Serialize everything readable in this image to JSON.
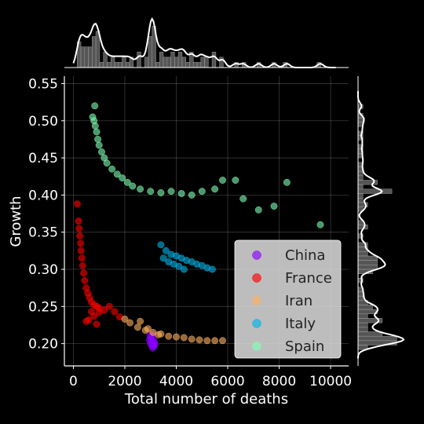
{
  "chart_data": {
    "type": "scatter",
    "title": "",
    "xlabel": "Total number of deaths",
    "ylabel": "Growth",
    "xlim": [
      -350,
      10700
    ],
    "ylim": [
      0.17,
      0.56
    ],
    "x_ticks": [
      0,
      2000,
      4000,
      6000,
      8000,
      10000
    ],
    "y_ticks": [
      0.2,
      0.25,
      0.3,
      0.35,
      0.4,
      0.45,
      0.5,
      0.55
    ],
    "x_tick_labels": [
      "0",
      "2000",
      "4000",
      "6000",
      "8000",
      "10000"
    ],
    "y_tick_labels": [
      "0.20",
      "0.25",
      "0.30",
      "0.35",
      "0.40",
      "0.45",
      "0.50",
      "0.55"
    ],
    "grid": true,
    "legend_position": "lower-right",
    "marginal_plots": [
      "top: x density with histogram",
      "right: y density with histogram"
    ],
    "series": [
      {
        "name": "China",
        "color": "#8b00ff",
        "points": [
          [
            2950,
            0.205
          ],
          [
            3000,
            0.2
          ],
          [
            3050,
            0.198
          ],
          [
            3100,
            0.203
          ],
          [
            3120,
            0.196
          ],
          [
            2980,
            0.211
          ],
          [
            3150,
            0.201
          ],
          [
            3080,
            0.194
          ],
          [
            3020,
            0.207
          ],
          [
            3170,
            0.199
          ],
          [
            3060,
            0.212
          ],
          [
            3110,
            0.205
          ]
        ]
      },
      {
        "name": "France",
        "color": "#ff0000",
        "points": [
          [
            150,
            0.388
          ],
          [
            200,
            0.365
          ],
          [
            220,
            0.355
          ],
          [
            250,
            0.345
          ],
          [
            280,
            0.335
          ],
          [
            300,
            0.325
          ],
          [
            330,
            0.315
          ],
          [
            360,
            0.305
          ],
          [
            400,
            0.295
          ],
          [
            440,
            0.285
          ],
          [
            500,
            0.275
          ],
          [
            560,
            0.268
          ],
          [
            620,
            0.262
          ],
          [
            700,
            0.256
          ],
          [
            800,
            0.252
          ],
          [
            900,
            0.25
          ],
          [
            1000,
            0.248
          ],
          [
            1200,
            0.245
          ],
          [
            1400,
            0.25
          ],
          [
            1600,
            0.243
          ],
          [
            1800,
            0.236
          ],
          [
            600,
            0.232
          ],
          [
            800,
            0.237
          ],
          [
            1000,
            0.242
          ],
          [
            700,
            0.243
          ],
          [
            500,
            0.23
          ],
          [
            900,
            0.226
          ]
        ]
      },
      {
        "name": "Iran",
        "color": "#ffb060",
        "points": [
          [
            2200,
            0.228
          ],
          [
            2500,
            0.222
          ],
          [
            2800,
            0.218
          ],
          [
            3100,
            0.215
          ],
          [
            3400,
            0.213
          ],
          [
            3700,
            0.21
          ],
          [
            4000,
            0.209
          ],
          [
            4300,
            0.208
          ],
          [
            4600,
            0.206
          ],
          [
            4900,
            0.205
          ],
          [
            5200,
            0.204
          ],
          [
            5500,
            0.204
          ],
          [
            5800,
            0.204
          ],
          [
            2600,
            0.23
          ],
          [
            2000,
            0.233
          ],
          [
            2900,
            0.22
          ],
          [
            3300,
            0.212
          ]
        ]
      },
      {
        "name": "Italy",
        "color": "#00b4e8",
        "points": [
          [
            3400,
            0.333
          ],
          [
            3600,
            0.325
          ],
          [
            3800,
            0.32
          ],
          [
            4000,
            0.318
          ],
          [
            4200,
            0.315
          ],
          [
            4400,
            0.312
          ],
          [
            4600,
            0.31
          ],
          [
            4800,
            0.307
          ],
          [
            5000,
            0.305
          ],
          [
            5200,
            0.302
          ],
          [
            5400,
            0.3
          ],
          [
            3500,
            0.315
          ],
          [
            3700,
            0.31
          ],
          [
            3900,
            0.307
          ],
          [
            4100,
            0.304
          ],
          [
            4300,
            0.3
          ]
        ]
      },
      {
        "name": "Spain",
        "color": "#7fffb4",
        "points": [
          [
            750,
            0.505
          ],
          [
            800,
            0.5
          ],
          [
            850,
            0.493
          ],
          [
            900,
            0.485
          ],
          [
            950,
            0.475
          ],
          [
            1000,
            0.467
          ],
          [
            1100,
            0.458
          ],
          [
            1200,
            0.45
          ],
          [
            1300,
            0.443
          ],
          [
            1500,
            0.435
          ],
          [
            1700,
            0.428
          ],
          [
            1900,
            0.423
          ],
          [
            2100,
            0.417
          ],
          [
            2300,
            0.412
          ],
          [
            2600,
            0.408
          ],
          [
            3000,
            0.405
          ],
          [
            3400,
            0.403
          ],
          [
            3800,
            0.405
          ],
          [
            4200,
            0.402
          ],
          [
            4600,
            0.4
          ],
          [
            5000,
            0.405
          ],
          [
            5500,
            0.408
          ],
          [
            5800,
            0.42
          ],
          [
            6300,
            0.42
          ],
          [
            6600,
            0.395
          ],
          [
            7200,
            0.38
          ],
          [
            7800,
            0.385
          ],
          [
            8300,
            0.417
          ],
          [
            9600,
            0.36
          ],
          [
            830,
            0.52
          ]
        ]
      }
    ]
  }
}
